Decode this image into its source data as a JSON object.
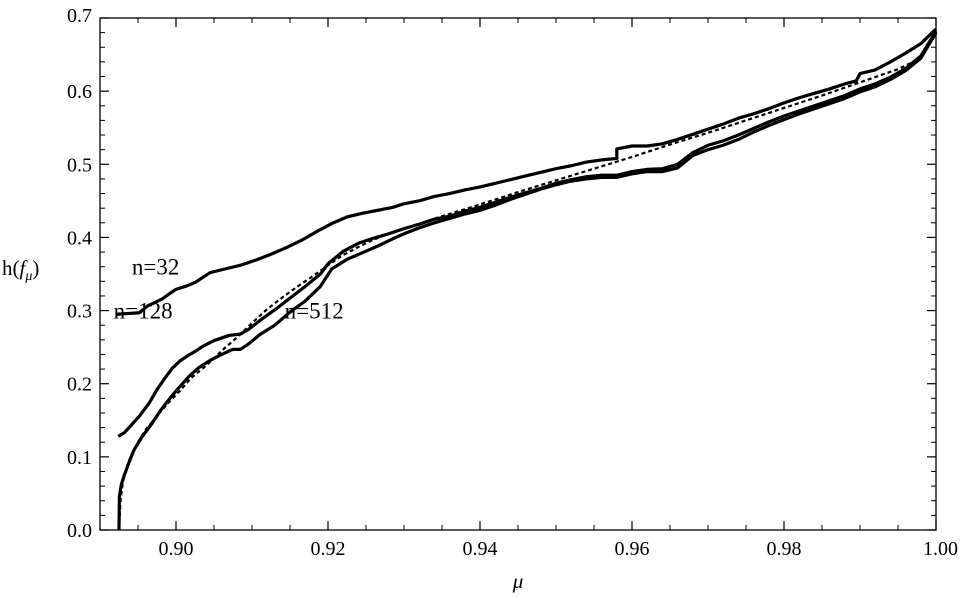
{
  "chart_data": {
    "type": "line",
    "title": "",
    "xlabel": "μ",
    "ylabel_prefix": "h(",
    "ylabel_italic": "f",
    "ylabel_sub": "μ",
    "ylabel_suffix": ")",
    "xlim": [
      0.89,
      1.0
    ],
    "ylim": [
      0.0,
      0.7
    ],
    "xticks": [
      "0.90",
      "0.92",
      "0.94",
      "0.96",
      "0.98",
      "1.00"
    ],
    "yticks": [
      "0.0",
      "0.1",
      "0.2",
      "0.3",
      "0.4",
      "0.5",
      "0.6",
      "0.7"
    ],
    "grid": false,
    "legend": "none",
    "annotations": [
      {
        "text": "n=32",
        "x": 0.8942,
        "y": 0.36
      },
      {
        "text": "n=128",
        "x": 0.8918,
        "y": 0.3
      },
      {
        "text": "n=512",
        "x": 0.9143,
        "y": 0.3
      }
    ],
    "series": [
      {
        "name": "n=32",
        "style": "solid",
        "x": [
          0.8922,
          0.8952,
          0.8962,
          0.8972,
          0.8982,
          0.899,
          0.9,
          0.9015,
          0.9026,
          0.9045,
          0.9065,
          0.9085,
          0.9105,
          0.9125,
          0.9145,
          0.9165,
          0.9185,
          0.9205,
          0.9225,
          0.9245,
          0.9265,
          0.9285,
          0.93,
          0.932,
          0.934,
          0.936,
          0.938,
          0.94,
          0.942,
          0.944,
          0.946,
          0.948,
          0.95,
          0.952,
          0.954,
          0.956,
          0.958,
          0.958,
          0.96,
          0.962,
          0.964,
          0.966,
          0.968,
          0.97,
          0.972,
          0.974,
          0.976,
          0.978,
          0.98,
          0.982,
          0.984,
          0.986,
          0.988,
          0.9895,
          0.99,
          0.992,
          0.994,
          0.996,
          0.998,
          1.0
        ],
        "y": [
          0.295,
          0.297,
          0.306,
          0.311,
          0.316,
          0.322,
          0.329,
          0.334,
          0.339,
          0.352,
          0.357,
          0.362,
          0.369,
          0.377,
          0.386,
          0.396,
          0.408,
          0.419,
          0.428,
          0.433,
          0.437,
          0.441,
          0.446,
          0.45,
          0.456,
          0.46,
          0.465,
          0.469,
          0.474,
          0.479,
          0.484,
          0.489,
          0.494,
          0.498,
          0.503,
          0.506,
          0.508,
          0.521,
          0.525,
          0.525,
          0.528,
          0.534,
          0.541,
          0.548,
          0.555,
          0.563,
          0.569,
          0.576,
          0.584,
          0.591,
          0.597,
          0.603,
          0.61,
          0.614,
          0.624,
          0.629,
          0.64,
          0.652,
          0.665,
          0.685
        ]
      },
      {
        "name": "n=128",
        "style": "solid",
        "x": [
          0.8924,
          0.8932,
          0.894,
          0.8952,
          0.8965,
          0.8975,
          0.8985,
          0.8995,
          0.9005,
          0.9015,
          0.9025,
          0.9035,
          0.905,
          0.907,
          0.9085,
          0.9095,
          0.9105,
          0.9115,
          0.913,
          0.915,
          0.917,
          0.919,
          0.92,
          0.922,
          0.924,
          0.926,
          0.928,
          0.93,
          0.932,
          0.934,
          0.936,
          0.938,
          0.94,
          0.942,
          0.944,
          0.946,
          0.948,
          0.95,
          0.952,
          0.954,
          0.956,
          0.958,
          0.96,
          0.962,
          0.964,
          0.966,
          0.968,
          0.97,
          0.972,
          0.974,
          0.976,
          0.978,
          0.98,
          0.982,
          0.984,
          0.986,
          0.988,
          0.99,
          0.992,
          0.994,
          0.996,
          0.998,
          1.0
        ],
        "y": [
          0.128,
          0.133,
          0.142,
          0.156,
          0.174,
          0.192,
          0.207,
          0.221,
          0.231,
          0.238,
          0.244,
          0.251,
          0.259,
          0.266,
          0.268,
          0.274,
          0.282,
          0.29,
          0.301,
          0.317,
          0.333,
          0.35,
          0.364,
          0.381,
          0.392,
          0.399,
          0.405,
          0.412,
          0.418,
          0.425,
          0.429,
          0.436,
          0.441,
          0.448,
          0.455,
          0.461,
          0.467,
          0.474,
          0.479,
          0.483,
          0.485,
          0.485,
          0.49,
          0.493,
          0.494,
          0.5,
          0.516,
          0.526,
          0.532,
          0.54,
          0.549,
          0.558,
          0.566,
          0.573,
          0.58,
          0.587,
          0.594,
          0.603,
          0.61,
          0.619,
          0.631,
          0.648,
          0.682
        ]
      },
      {
        "name": "n=512",
        "style": "solid",
        "x": [
          0.8925,
          0.89255,
          0.8928,
          0.8932,
          0.8938,
          0.8945,
          0.8955,
          0.8968,
          0.898,
          0.8992,
          0.9005,
          0.9018,
          0.903,
          0.9045,
          0.906,
          0.9075,
          0.9085,
          0.9095,
          0.911,
          0.913,
          0.915,
          0.917,
          0.919,
          0.9205,
          0.9225,
          0.9245,
          0.9265,
          0.9285,
          0.93,
          0.932,
          0.934,
          0.936,
          0.938,
          0.94,
          0.942,
          0.944,
          0.946,
          0.948,
          0.95,
          0.952,
          0.954,
          0.956,
          0.958,
          0.96,
          0.962,
          0.964,
          0.966,
          0.968,
          0.97,
          0.972,
          0.974,
          0.976,
          0.978,
          0.98,
          0.982,
          0.984,
          0.986,
          0.988,
          0.99,
          0.992,
          0.994,
          0.996,
          0.998,
          1.0
        ],
        "y": [
          0.0,
          0.045,
          0.062,
          0.075,
          0.092,
          0.11,
          0.127,
          0.145,
          0.164,
          0.18,
          0.196,
          0.211,
          0.222,
          0.232,
          0.24,
          0.247,
          0.247,
          0.254,
          0.267,
          0.28,
          0.298,
          0.313,
          0.333,
          0.357,
          0.37,
          0.379,
          0.388,
          0.398,
          0.405,
          0.413,
          0.42,
          0.426,
          0.432,
          0.437,
          0.444,
          0.452,
          0.459,
          0.466,
          0.472,
          0.477,
          0.48,
          0.482,
          0.482,
          0.487,
          0.49,
          0.49,
          0.495,
          0.512,
          0.52,
          0.526,
          0.534,
          0.544,
          0.553,
          0.561,
          0.569,
          0.576,
          0.583,
          0.59,
          0.599,
          0.606,
          0.616,
          0.628,
          0.645,
          0.68
        ]
      },
      {
        "name": "",
        "style": "dashed",
        "x": [
          0.8925,
          0.8927,
          0.893,
          0.8935,
          0.894,
          0.895,
          0.896,
          0.8975,
          0.899,
          0.9005,
          0.902,
          0.904,
          0.906,
          0.908,
          0.91,
          0.912,
          0.914,
          0.916,
          0.918,
          0.92,
          0.922,
          0.924,
          0.926,
          0.928,
          0.93,
          0.935,
          0.94,
          0.945,
          0.95,
          0.955,
          0.96,
          0.965,
          0.97,
          0.975,
          0.98,
          0.985,
          0.99,
          0.995,
          0.998,
          1.0
        ],
        "y": [
          0.0,
          0.04,
          0.065,
          0.085,
          0.1,
          0.12,
          0.137,
          0.156,
          0.174,
          0.19,
          0.208,
          0.225,
          0.245,
          0.263,
          0.283,
          0.302,
          0.318,
          0.333,
          0.347,
          0.362,
          0.376,
          0.387,
          0.397,
          0.405,
          0.412,
          0.429,
          0.445,
          0.462,
          0.478,
          0.494,
          0.51,
          0.527,
          0.543,
          0.56,
          0.577,
          0.594,
          0.612,
          0.63,
          0.645,
          0.68
        ]
      }
    ]
  }
}
